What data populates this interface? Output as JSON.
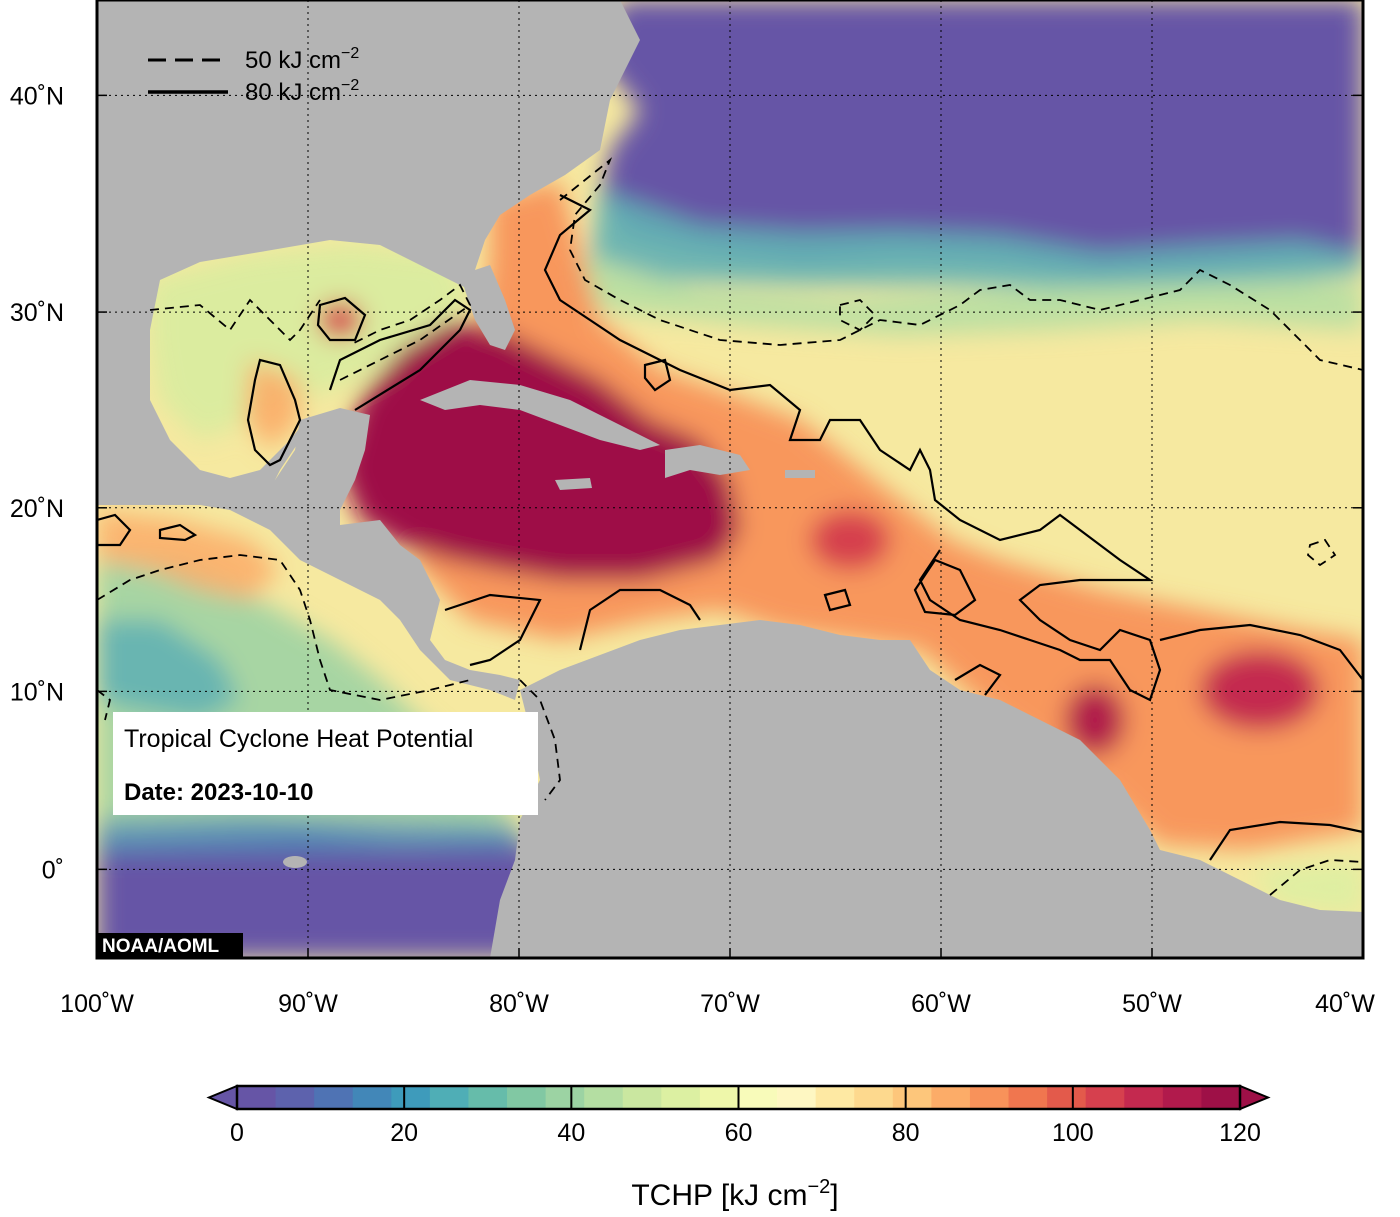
{
  "map": {
    "title": "Tropical Cyclone Heat Potential",
    "date_label": "Date: 2023-10-10",
    "credit": "NOAA/AOML",
    "lon_range": [
      -100,
      -40
    ],
    "lat_range": [
      -5,
      44
    ],
    "lon_ticks": [
      {
        "value": -100,
        "label": "100˚W"
      },
      {
        "value": -90,
        "label": "90˚W"
      },
      {
        "value": -80,
        "label": "80˚W"
      },
      {
        "value": -70,
        "label": "70˚W"
      },
      {
        "value": -60,
        "label": "60˚W"
      },
      {
        "value": -50,
        "label": "50˚W"
      },
      {
        "value": -40,
        "label": "40˚W"
      }
    ],
    "lat_ticks": [
      {
        "value": 0,
        "label": "0˚"
      },
      {
        "value": 10,
        "label": "10˚N"
      },
      {
        "value": 20,
        "label": "20˚N"
      },
      {
        "value": 30,
        "label": "30˚N"
      },
      {
        "value": 40,
        "label": "40˚N"
      }
    ],
    "contour_legend": [
      {
        "style": "dashed",
        "label": "50 kJ cm",
        "sup": "−2"
      },
      {
        "style": "solid",
        "label": "80 kJ cm",
        "sup": "−2"
      }
    ],
    "colors": {
      "land": "#b4b4b4",
      "cold": "#6655a6",
      "hot": "#9e1047"
    }
  },
  "colorbar": {
    "min": 0,
    "max": 120,
    "ticks": [
      {
        "value": 0,
        "label": "0"
      },
      {
        "value": 20,
        "label": "20"
      },
      {
        "value": 40,
        "label": "40"
      },
      {
        "value": 60,
        "label": "60"
      },
      {
        "value": 80,
        "label": "80"
      },
      {
        "value": 100,
        "label": "100"
      },
      {
        "value": 120,
        "label": "120"
      }
    ],
    "title": "TCHP [kJ cm",
    "title_sup": "−2",
    "title_end": "]",
    "colors": [
      "#6655a6",
      "#5d62ad",
      "#4f73b4",
      "#4287b8",
      "#3e9bbb",
      "#4faeb6",
      "#66bcaa",
      "#81c8a3",
      "#9cd3a3",
      "#b4dea2",
      "#cae7a0",
      "#dcf0a2",
      "#eef7aa",
      "#f8fbba",
      "#fef7c2",
      "#fee9a3",
      "#fdd98e",
      "#fdc67b",
      "#fcac68",
      "#f8925a",
      "#f0764f",
      "#e35a4b",
      "#d6404e",
      "#c4294f",
      "#b11a4c",
      "#9e1047"
    ]
  }
}
